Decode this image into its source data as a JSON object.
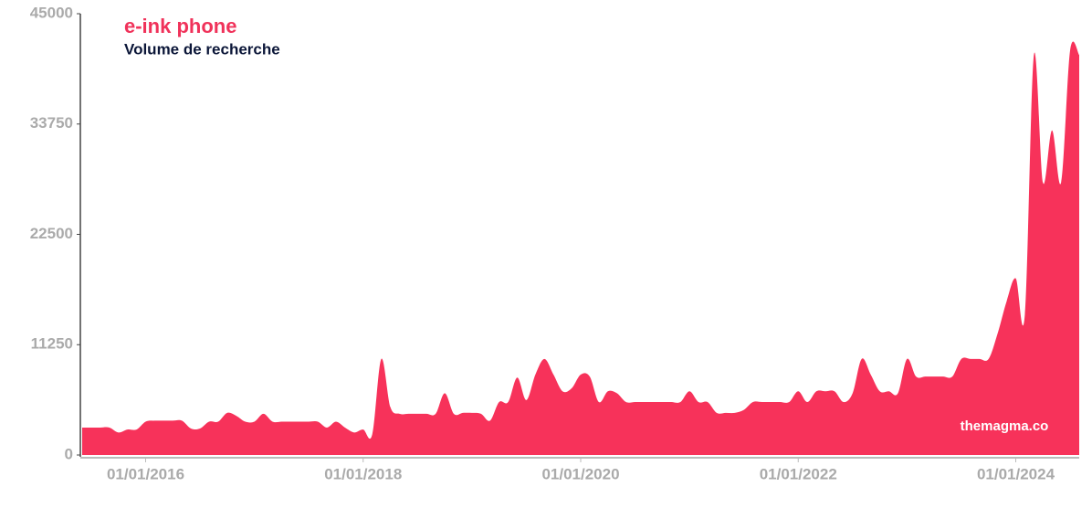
{
  "chart_data": {
    "type": "area",
    "title": "e-ink phone",
    "subtitle": "Volume de recherche",
    "watermark": "themagma.co",
    "color": "#f7325a",
    "x": [
      "01/06/2015",
      "01/07/2015",
      "01/08/2015",
      "01/09/2015",
      "01/10/2015",
      "01/11/2015",
      "01/12/2015",
      "01/01/2016",
      "01/02/2016",
      "01/03/2016",
      "01/04/2016",
      "01/05/2016",
      "01/06/2016",
      "01/07/2016",
      "01/08/2016",
      "01/09/2016",
      "01/10/2016",
      "01/11/2016",
      "01/12/2016",
      "01/01/2017",
      "01/02/2017",
      "01/03/2017",
      "01/04/2017",
      "01/05/2017",
      "01/06/2017",
      "01/07/2017",
      "01/08/2017",
      "01/09/2017",
      "01/10/2017",
      "01/11/2017",
      "01/12/2017",
      "01/01/2018",
      "01/02/2018",
      "01/03/2018",
      "01/04/2018",
      "01/05/2018",
      "01/06/2018",
      "01/07/2018",
      "01/08/2018",
      "01/09/2018",
      "01/10/2018",
      "01/11/2018",
      "01/12/2018",
      "01/01/2019",
      "01/02/2019",
      "01/03/2019",
      "01/04/2019",
      "01/05/2019",
      "01/06/2019",
      "01/07/2019",
      "01/08/2019",
      "01/09/2019",
      "01/10/2019",
      "01/11/2019",
      "01/12/2019",
      "01/01/2020",
      "01/02/2020",
      "01/03/2020",
      "01/04/2020",
      "01/05/2020",
      "01/06/2020",
      "01/07/2020",
      "01/08/2020",
      "01/09/2020",
      "01/10/2020",
      "01/11/2020",
      "01/12/2020",
      "01/01/2021",
      "01/02/2021",
      "01/03/2021",
      "01/04/2021",
      "01/05/2021",
      "01/06/2021",
      "01/07/2021",
      "01/08/2021",
      "01/09/2021",
      "01/10/2021",
      "01/11/2021",
      "01/12/2021",
      "01/01/2022",
      "01/02/2022",
      "01/03/2022",
      "01/04/2022",
      "01/05/2022",
      "01/06/2022",
      "01/07/2022",
      "01/08/2022",
      "01/09/2022",
      "01/10/2022",
      "01/11/2022",
      "01/12/2022",
      "01/01/2023",
      "01/02/2023",
      "01/03/2023",
      "01/04/2023",
      "01/05/2023",
      "01/06/2023",
      "01/07/2023",
      "01/08/2023",
      "01/09/2023",
      "01/10/2023",
      "01/11/2023",
      "01/12/2023",
      "01/01/2024",
      "01/02/2024",
      "01/03/2024",
      "01/04/2024",
      "01/05/2024",
      "01/06/2024",
      "01/07/2024",
      "01/08/2024"
    ],
    "values": [
      2800,
      2800,
      2800,
      2800,
      2300,
      2600,
      2600,
      3400,
      3500,
      3500,
      3500,
      3500,
      2700,
      2700,
      3400,
      3400,
      4300,
      4000,
      3400,
      3400,
      4200,
      3400,
      3400,
      3400,
      3400,
      3400,
      3400,
      2800,
      3400,
      2800,
      2300,
      2600,
      2100,
      9800,
      4900,
      4200,
      4200,
      4200,
      4200,
      4200,
      6300,
      4200,
      4300,
      4300,
      4200,
      3500,
      5400,
      5400,
      7900,
      5600,
      8200,
      9800,
      8200,
      6500,
      6800,
      8200,
      8000,
      5400,
      6500,
      6300,
      5400,
      5400,
      5400,
      5400,
      5400,
      5400,
      5400,
      6500,
      5400,
      5400,
      4300,
      4300,
      4300,
      4600,
      5400,
      5400,
      5400,
      5400,
      5400,
      6500,
      5400,
      6500,
      6500,
      6500,
      5400,
      6300,
      9800,
      8200,
      6500,
      6500,
      6300,
      9800,
      8000,
      8000,
      8000,
      8000,
      8000,
      9800,
      9800,
      9800,
      9800,
      12400,
      15700,
      18000,
      14300,
      40800,
      27800,
      33100,
      27800,
      41300,
      40800
    ],
    "xlim": [
      "01/06/2015",
      "01/08/2024"
    ],
    "xticks": [
      "01/01/2016",
      "01/01/2018",
      "01/01/2020",
      "01/01/2022",
      "01/01/2024"
    ],
    "ylim": [
      0,
      45000
    ],
    "yticks": [
      0,
      11250,
      22500,
      33750,
      45000
    ]
  }
}
